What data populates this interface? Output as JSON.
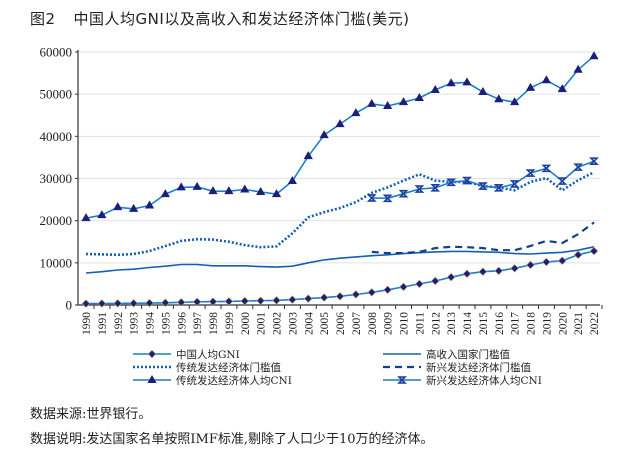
{
  "title": {
    "number": "图2",
    "text": "中国人均GNI以及高收入和发达经济体门槛(美元)"
  },
  "notes": {
    "source": "数据来源:世界银行。",
    "explanation": "数据说明:发达国家名单按照IMF标准,剔除了人口少于10万的经济体。"
  },
  "chart_data": {
    "type": "line",
    "title": "中国人均GNI以及高收入和发达经济体门槛(美元)",
    "xlabel": "",
    "ylabel": "",
    "ylim": [
      0,
      60000
    ],
    "yticks": [
      "0",
      "10000",
      "20000",
      "30000",
      "40000",
      "50000",
      "60000"
    ],
    "ytick_values": [
      0,
      10000,
      20000,
      30000,
      40000,
      50000,
      60000
    ],
    "grid": true,
    "legend_position": "bottom",
    "x": [
      "1990",
      "1991",
      "1992",
      "1993",
      "1994",
      "1995",
      "1996",
      "1997",
      "1998",
      "1999",
      "2000",
      "2001",
      "2002",
      "2003",
      "2004",
      "2005",
      "2006",
      "2007",
      "2008",
      "2009",
      "2010",
      "2011",
      "2012",
      "2013",
      "2014",
      "2015",
      "2016",
      "2017",
      "2018",
      "2019",
      "2020",
      "2021",
      "2022"
    ],
    "series": [
      {
        "name": "中国人均GNI",
        "style": "solid-diamond",
        "color": "#1a7fc8",
        "marker_color": "#1b1f7a",
        "values": [
          330,
          350,
          390,
          410,
          460,
          530,
          650,
          750,
          800,
          860,
          940,
          1010,
          1100,
          1270,
          1510,
          1760,
          2060,
          2500,
          3000,
          3600,
          4300,
          5000,
          5700,
          6600,
          7400,
          7900,
          8100,
          8700,
          9500,
          10200,
          10500,
          11900,
          12800
        ]
      },
      {
        "name": "高收入国家门槛值",
        "style": "solid",
        "color": "#1560b0",
        "values": [
          7600,
          7900,
          8300,
          8500,
          8900,
          9200,
          9600,
          9600,
          9300,
          9300,
          9300,
          9100,
          9000,
          9200,
          10000,
          10700,
          11100,
          11400,
          11700,
          11900,
          12200,
          12400,
          12600,
          12700,
          12700,
          12600,
          12500,
          12200,
          12100,
          12300,
          12500,
          13000,
          13800
        ]
      },
      {
        "name": "传统发达经济体门槛值",
        "style": "dotted",
        "color": "#1560b0",
        "values": [
          12100,
          12000,
          11900,
          12100,
          12800,
          14000,
          15200,
          15600,
          15500,
          15000,
          14200,
          13700,
          13900,
          17000,
          20800,
          22000,
          23000,
          24400,
          26600,
          27900,
          29500,
          31000,
          29500,
          29200,
          29200,
          28200,
          27900,
          27200,
          29200,
          30100,
          27200,
          29600,
          31500
        ]
      },
      {
        "name": "新兴发达经济体门槛值",
        "style": "dashed",
        "color": "#12408a",
        "values": [
          null,
          null,
          null,
          null,
          null,
          null,
          null,
          null,
          null,
          null,
          null,
          null,
          null,
          null,
          null,
          null,
          null,
          null,
          12600,
          12300,
          12300,
          12600,
          13500,
          13800,
          13700,
          13500,
          13000,
          13000,
          14000,
          15200,
          14700,
          16800,
          19600
        ]
      },
      {
        "name": "传统发达经济体人均CNI",
        "style": "solid-triangle",
        "color": "#1a7fc8",
        "marker_color": "#1b1f7a",
        "values": [
          20600,
          21300,
          23200,
          22800,
          23600,
          26300,
          27900,
          28000,
          27000,
          27000,
          27400,
          26800,
          26300,
          29400,
          35300,
          40300,
          42900,
          45500,
          47700,
          47200,
          48100,
          49100,
          51000,
          52600,
          52800,
          50500,
          48800,
          48100,
          51500,
          53300,
          51200,
          55800,
          59000
        ]
      },
      {
        "name": "新兴发达经济体人均CNI",
        "style": "solid-x",
        "color": "#1a7fc8",
        "marker_color": "#1b3f9a",
        "values": [
          null,
          null,
          null,
          null,
          null,
          null,
          null,
          null,
          null,
          null,
          null,
          null,
          null,
          null,
          null,
          null,
          null,
          null,
          25400,
          25300,
          26400,
          27500,
          27800,
          29100,
          29500,
          28200,
          27800,
          28700,
          31300,
          32400,
          29400,
          32700,
          34100
        ]
      }
    ],
    "legend": [
      {
        "label": "中国人均GNI",
        "series": 0
      },
      {
        "label": "高收入国家门槛值",
        "series": 1
      },
      {
        "label": "传统发达经济体门槛值",
        "series": 2
      },
      {
        "label": "新兴发达经济体门槛值",
        "series": 3
      },
      {
        "label": "传统发达经济体人均CNI",
        "series": 4
      },
      {
        "label": "新兴发达经济体人均CNI",
        "series": 5
      }
    ]
  }
}
